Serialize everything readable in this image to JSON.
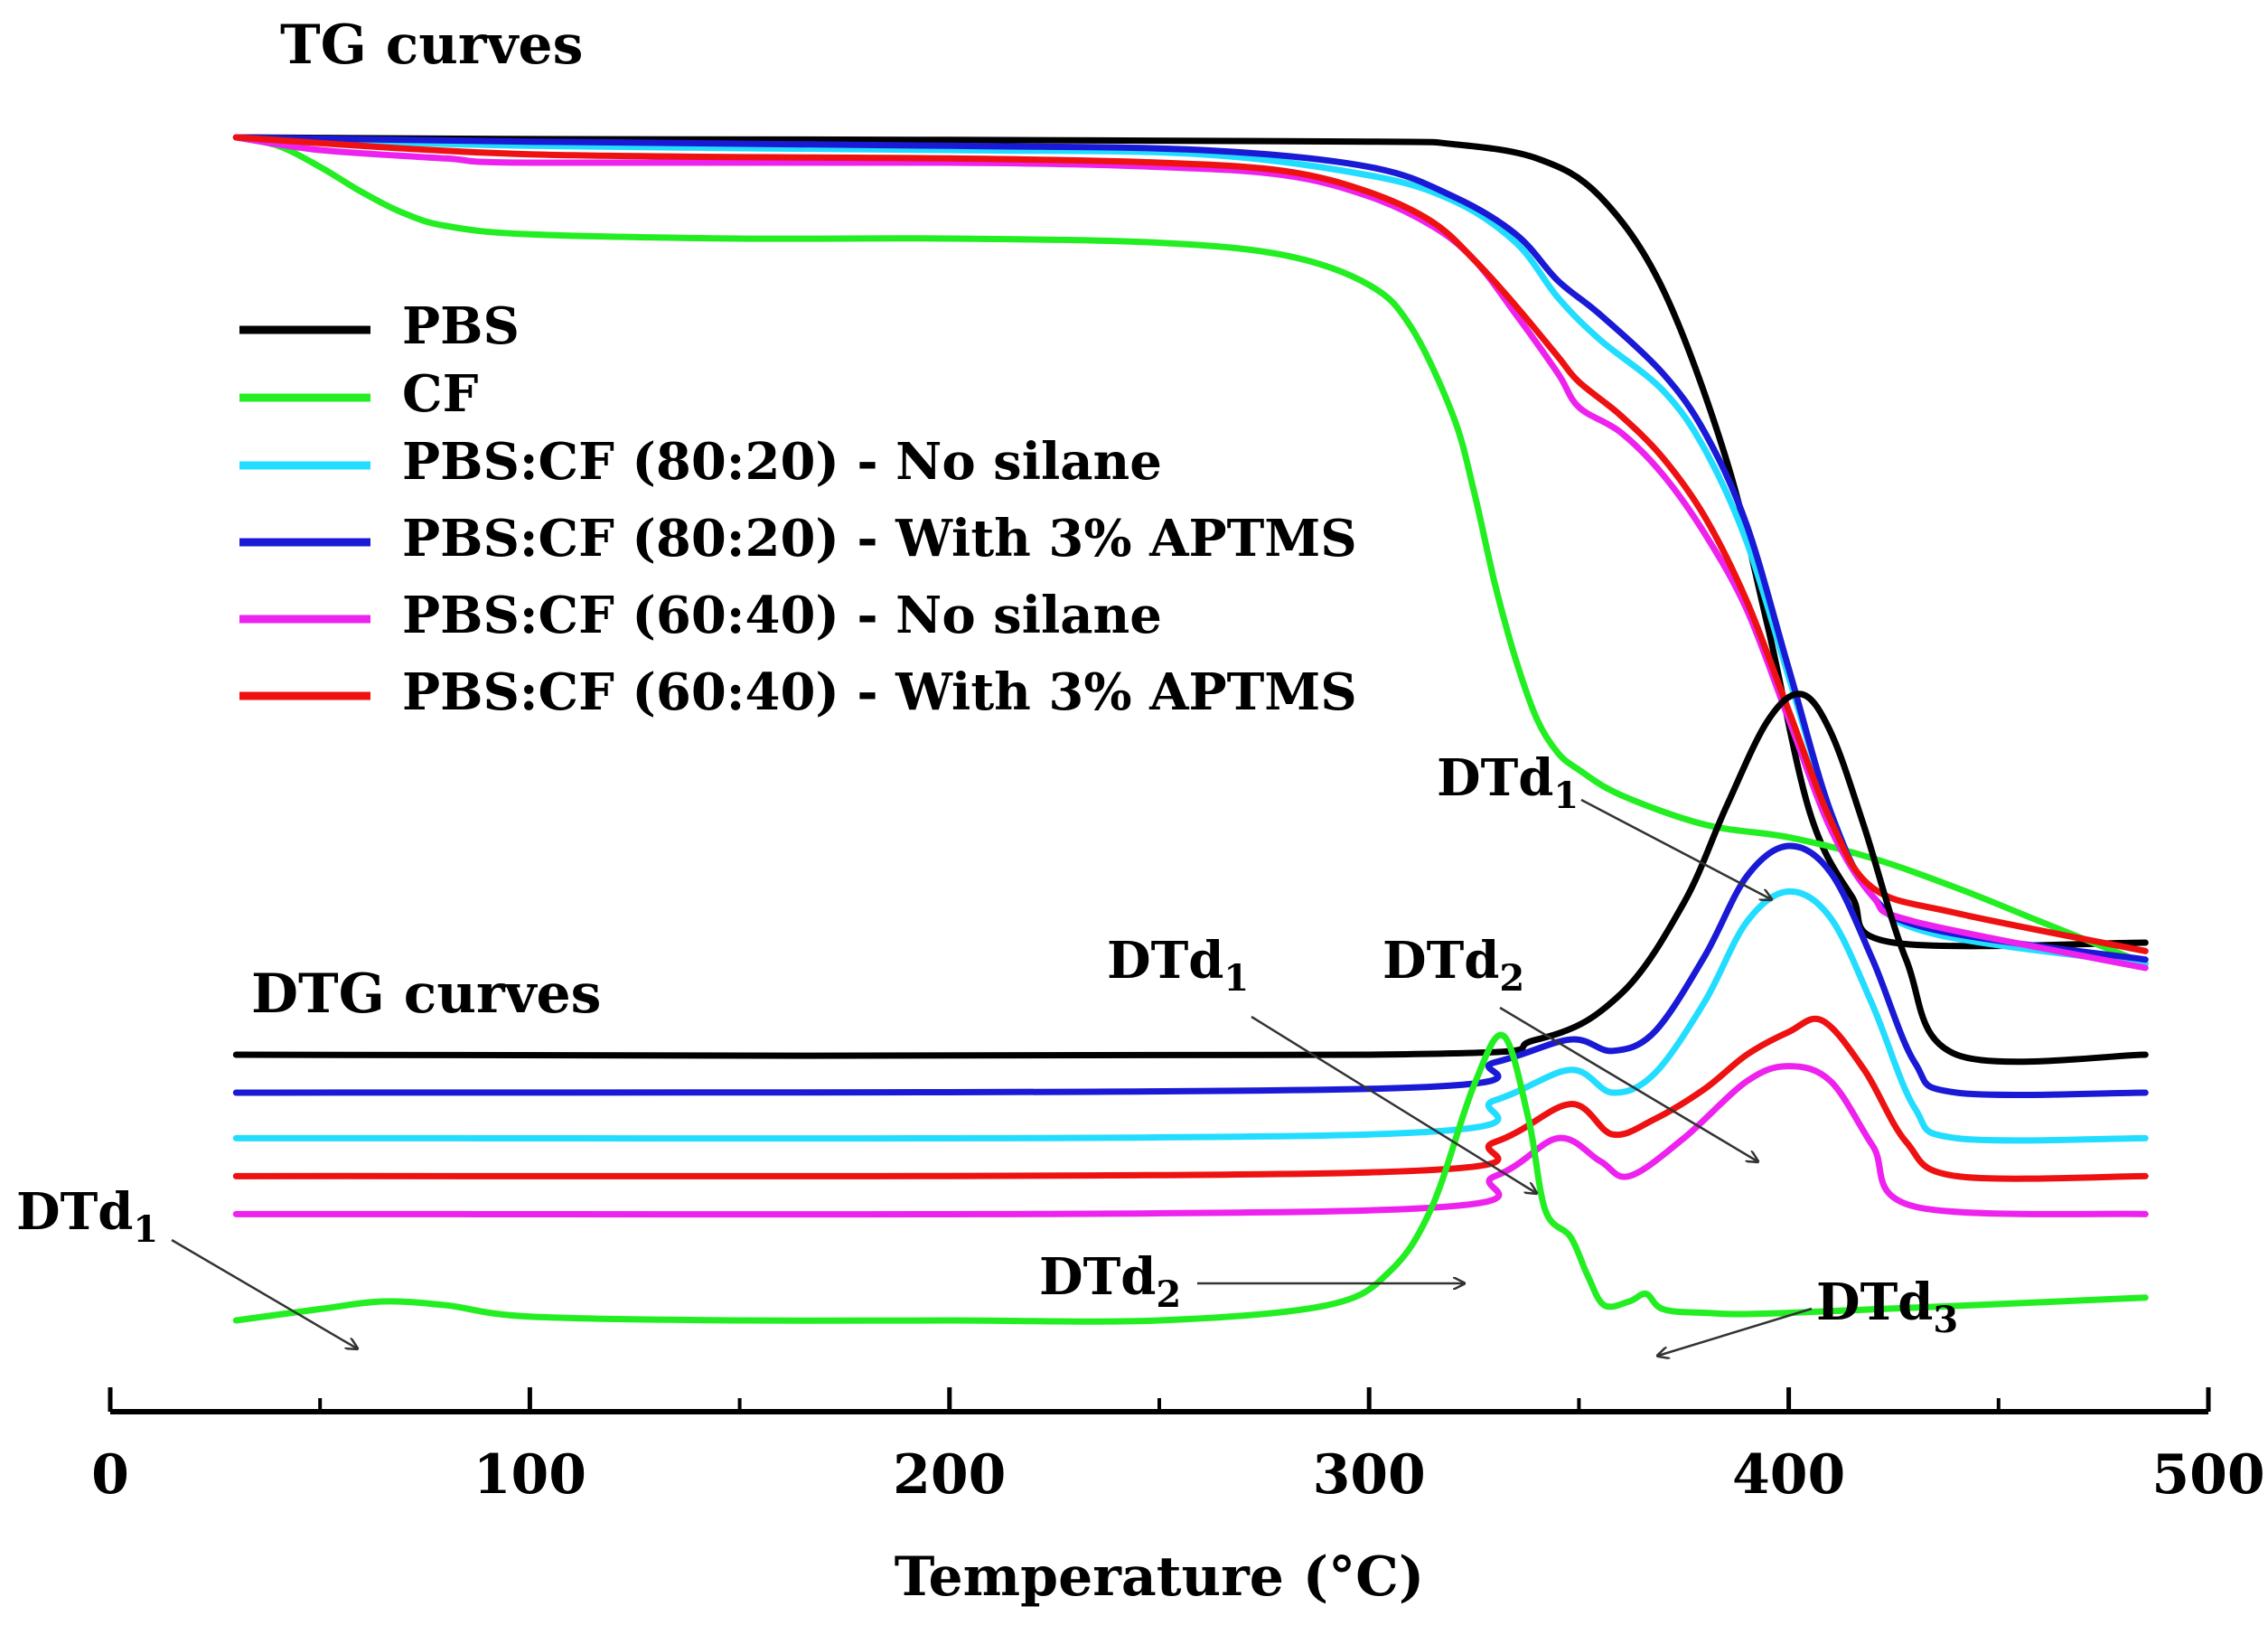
{
  "chart_data": {
    "type": "line",
    "xlabel": "Temperature (°C)",
    "ylabel": "",
    "xlim": [
      0,
      500
    ],
    "x_ticks": [
      "0",
      "100",
      "200",
      "300",
      "400",
      "500"
    ],
    "tg_title": "TG curves",
    "dtg_title": "DTG curves",
    "legend": [
      {
        "key": "pbs",
        "label": "PBS",
        "color": "#000000"
      },
      {
        "key": "cf",
        "label": "CF",
        "color": "#22ee22"
      },
      {
        "key": "pbs_cf_8020_ns",
        "label": "PBS:CF (80:20) -  No silane",
        "color": "#22ddff"
      },
      {
        "key": "pbs_cf_8020_ap",
        "label": "PBS:CF (80:20) -  With 3% APTMS",
        "color": "#1a1ad6"
      },
      {
        "key": "pbs_cf_6040_ns",
        "label": "PBS:CF (60:40) -  No silane",
        "color": "#ee22ee"
      },
      {
        "key": "pbs_cf_6040_ap",
        "label": "PBS:CF (60:40) -  With 3% APTMS",
        "color": "#ee1111"
      }
    ],
    "series_tg": [
      {
        "key": "pbs",
        "name": "PBS",
        "x": [
          30,
          100,
          200,
          300,
          320,
          340,
          355,
          370,
          385,
          395,
          405,
          415,
          425,
          485
        ],
        "y": [
          1.0,
          0.998,
          0.997,
          0.995,
          0.992,
          0.975,
          0.93,
          0.82,
          0.62,
          0.42,
          0.2,
          0.1,
          0.045,
          0.045
        ]
      },
      {
        "key": "cf",
        "name": "CF",
        "x": [
          30,
          40,
          50,
          60,
          70,
          80,
          100,
          150,
          200,
          250,
          280,
          300,
          310,
          320,
          325,
          330,
          335,
          340,
          345,
          350,
          360,
          380,
          400,
          420,
          440,
          460,
          485
        ],
        "y": [
          1.0,
          0.99,
          0.965,
          0.935,
          0.91,
          0.895,
          0.885,
          0.88,
          0.88,
          0.875,
          0.86,
          0.825,
          0.775,
          0.67,
          0.58,
          0.47,
          0.38,
          0.31,
          0.27,
          0.25,
          0.22,
          0.185,
          0.17,
          0.145,
          0.11,
          0.07,
          0.02
        ]
      },
      {
        "key": "pbs_cf_8020_ns",
        "name": "PBS:CF (80:20) -  No silane",
        "x": [
          30,
          100,
          200,
          260,
          300,
          320,
          335,
          345,
          355,
          370,
          380,
          390,
          400,
          410,
          420,
          435,
          485
        ],
        "y": [
          1.0,
          0.99,
          0.985,
          0.98,
          0.955,
          0.925,
          0.875,
          0.81,
          0.76,
          0.7,
          0.63,
          0.52,
          0.36,
          0.2,
          0.1,
          0.055,
          0.02
        ]
      },
      {
        "key": "pbs_cf_8020_ap",
        "name": "PBS:CF (80:20) -  With 3% APTMS",
        "x": [
          30,
          100,
          200,
          260,
          300,
          320,
          335,
          345,
          355,
          370,
          380,
          390,
          400,
          410,
          420,
          435,
          485
        ],
        "y": [
          1.0,
          0.995,
          0.99,
          0.985,
          0.965,
          0.93,
          0.885,
          0.83,
          0.79,
          0.72,
          0.65,
          0.54,
          0.37,
          0.2,
          0.1,
          0.06,
          0.025
        ]
      },
      {
        "key": "pbs_cf_6040_ns",
        "name": "PBS:CF (60:40) -  No silane",
        "x": [
          30,
          50,
          80,
          100,
          200,
          250,
          280,
          300,
          315,
          325,
          335,
          345,
          350,
          360,
          370,
          380,
          390,
          400,
          410,
          420,
          430,
          485
        ],
        "y": [
          1.0,
          0.985,
          0.975,
          0.97,
          0.97,
          0.965,
          0.955,
          0.93,
          0.895,
          0.855,
          0.79,
          0.72,
          0.68,
          0.65,
          0.6,
          0.53,
          0.44,
          0.31,
          0.18,
          0.1,
          0.07,
          0.015
        ]
      },
      {
        "key": "pbs_cf_6040_ap",
        "name": "PBS:CF (60:40) -  With 3% APTMS",
        "x": [
          30,
          100,
          200,
          250,
          280,
          300,
          315,
          325,
          335,
          345,
          350,
          360,
          370,
          380,
          390,
          400,
          410,
          420,
          440,
          485
        ],
        "y": [
          1.0,
          0.98,
          0.975,
          0.97,
          0.96,
          0.935,
          0.9,
          0.855,
          0.8,
          0.74,
          0.71,
          0.67,
          0.62,
          0.55,
          0.45,
          0.32,
          0.19,
          0.11,
          0.08,
          0.035
        ]
      }
    ],
    "series_dtg": [
      {
        "key": "pbs",
        "name": "PBS",
        "baseline": 0.0,
        "x": [
          30,
          300,
          340,
          360,
          375,
          385,
          395,
          403,
          410,
          418,
          428,
          440,
          485
        ],
        "y": [
          0,
          0,
          0.4,
          1.6,
          4,
          6.5,
          8.8,
          9.5,
          8.5,
          6,
          2.5,
          0,
          0
        ]
      },
      {
        "key": "pbs_cf_8020_ap",
        "name": "PBS:CF (80:20) -  With 3% APTMS",
        "baseline": -1.0,
        "x": [
          30,
          300,
          330,
          348,
          358,
          368,
          380,
          390,
          400,
          410,
          420,
          430,
          440,
          485
        ],
        "y": [
          0,
          0.1,
          0.8,
          1.4,
          1.1,
          1.6,
          3.6,
          5.7,
          6.5,
          5.8,
          3.5,
          0.8,
          0,
          0
        ]
      },
      {
        "key": "pbs_cf_8020_ns",
        "name": "PBS:CF (80:20) -  No silane",
        "baseline": -2.2,
        "x": [
          30,
          300,
          330,
          348,
          358,
          368,
          380,
          390,
          400,
          410,
          420,
          430,
          440,
          485
        ],
        "y": [
          0,
          0.1,
          1.0,
          1.8,
          1.2,
          1.7,
          3.6,
          5.7,
          6.5,
          5.8,
          3.5,
          0.8,
          0,
          0
        ]
      },
      {
        "key": "pbs_cf_6040_ap",
        "name": "PBS:CF (60:40) -  With 3% APTMS",
        "baseline": -3.2,
        "x": [
          30,
          300,
          330,
          348,
          358,
          368,
          380,
          390,
          400,
          408,
          418,
          428,
          440,
          485
        ],
        "y": [
          0,
          0.1,
          0.9,
          1.9,
          1.1,
          1.5,
          2.3,
          3.2,
          3.8,
          4.1,
          2.8,
          0.9,
          0,
          0
        ]
      },
      {
        "key": "pbs_cf_6040_ns",
        "name": "PBS:CF (60:40) -  No silane",
        "baseline": -4.2,
        "x": [
          30,
          300,
          330,
          345,
          355,
          362,
          375,
          390,
          400,
          410,
          420,
          430,
          485
        ],
        "y": [
          0,
          0.1,
          1.0,
          2.0,
          1.4,
          1.0,
          2.0,
          3.5,
          3.9,
          3.5,
          1.8,
          0.2,
          0
        ]
      },
      {
        "key": "cf",
        "name": "CF",
        "baseline": -7.0,
        "x": [
          30,
          50,
          65,
          80,
          100,
          150,
          200,
          250,
          290,
          305,
          315,
          325,
          332,
          338,
          342,
          348,
          352,
          356,
          362,
          366,
          370,
          380,
          400,
          485
        ],
        "y": [
          0,
          0.3,
          0.5,
          0.4,
          0.1,
          0,
          0,
          0,
          0.4,
          1.3,
          3.0,
          6.2,
          7.5,
          5.3,
          2.9,
          2.2,
          1.2,
          0.4,
          0.5,
          0.7,
          0.3,
          0.2,
          0.2,
          0.6
        ]
      }
    ],
    "annotations": [
      {
        "label": "DTd",
        "sub": "1",
        "curve": "PBS TG/DTG",
        "points_to_x": 400
      },
      {
        "label": "DTd",
        "sub": "1",
        "curve": "PBS:CF DTG",
        "points_to_x": 345
      },
      {
        "label": "DTd",
        "sub": "2",
        "curve": "PBS:CF DTG",
        "points_to_x": 397
      },
      {
        "label": "DTd",
        "sub": "1",
        "curve": "CF DTG",
        "points_to_x": 62
      },
      {
        "label": "DTd",
        "sub": "2",
        "curve": "CF DTG",
        "points_to_x": 322
      },
      {
        "label": "DTd",
        "sub": "3",
        "curve": "CF DTG",
        "points_to_x": 368
      }
    ]
  }
}
